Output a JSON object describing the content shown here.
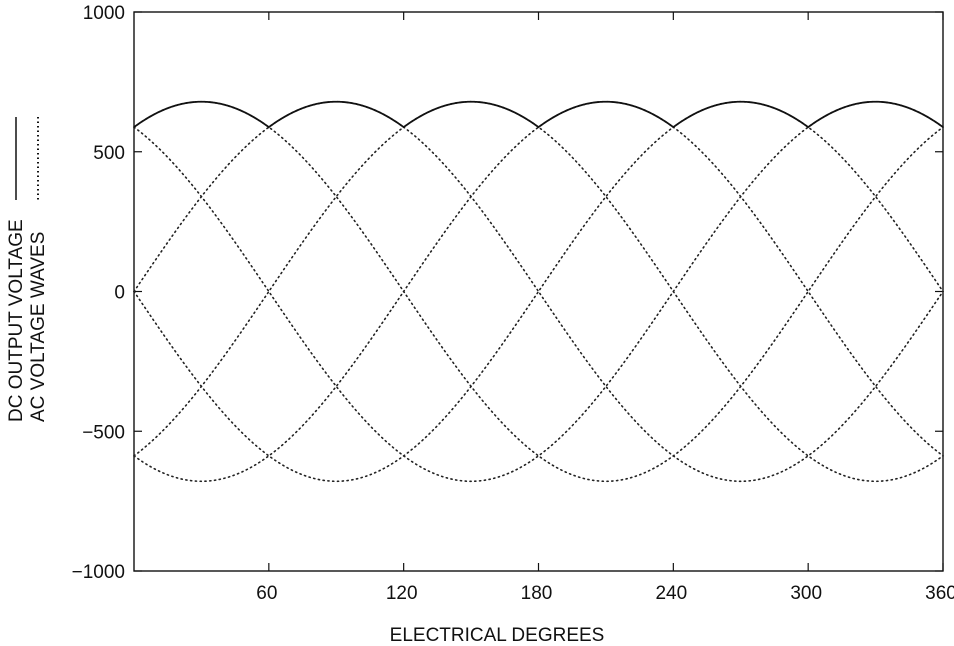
{
  "chart_data": {
    "type": "line",
    "title": "",
    "xlabel": "ELECTRICAL DEGREES",
    "ylabel_lines": [
      "DC OUTPUT VOLTAGE",
      "AC VOLTAGE WAVES"
    ],
    "xlim": [
      0,
      360
    ],
    "ylim": [
      -1000,
      1000
    ],
    "xticks": [
      60,
      120,
      180,
      240,
      300,
      360
    ],
    "yticks": [
      -1000,
      -500,
      0,
      500,
      1000
    ],
    "grid": false,
    "legend_position": "left, beside y-axis label",
    "series": [
      {
        "name": "DC OUTPUT VOLTAGE",
        "style": "solid",
        "description_values": {
          "x": [
            0,
            30,
            60,
            90,
            120,
            150,
            180,
            210,
            240,
            270,
            300,
            330,
            360
          ],
          "y": [
            588,
            679,
            588,
            679,
            588,
            679,
            588,
            679,
            588,
            679,
            588,
            679,
            588
          ]
        }
      },
      {
        "name": "AC VOLTAGE WAVES",
        "style": "dotted",
        "amplitude": 679,
        "waves_phase_shift_deg": [
          0,
          60,
          120,
          180,
          240,
          300
        ],
        "base_wave": {
          "x": [
            0,
            30,
            60,
            90,
            120,
            150,
            180,
            210,
            240,
            270,
            300,
            330,
            360
          ],
          "y": [
            588,
            679,
            588,
            340,
            0,
            -340,
            -588,
            -679,
            -588,
            -340,
            0,
            340,
            588
          ]
        }
      }
    ]
  }
}
